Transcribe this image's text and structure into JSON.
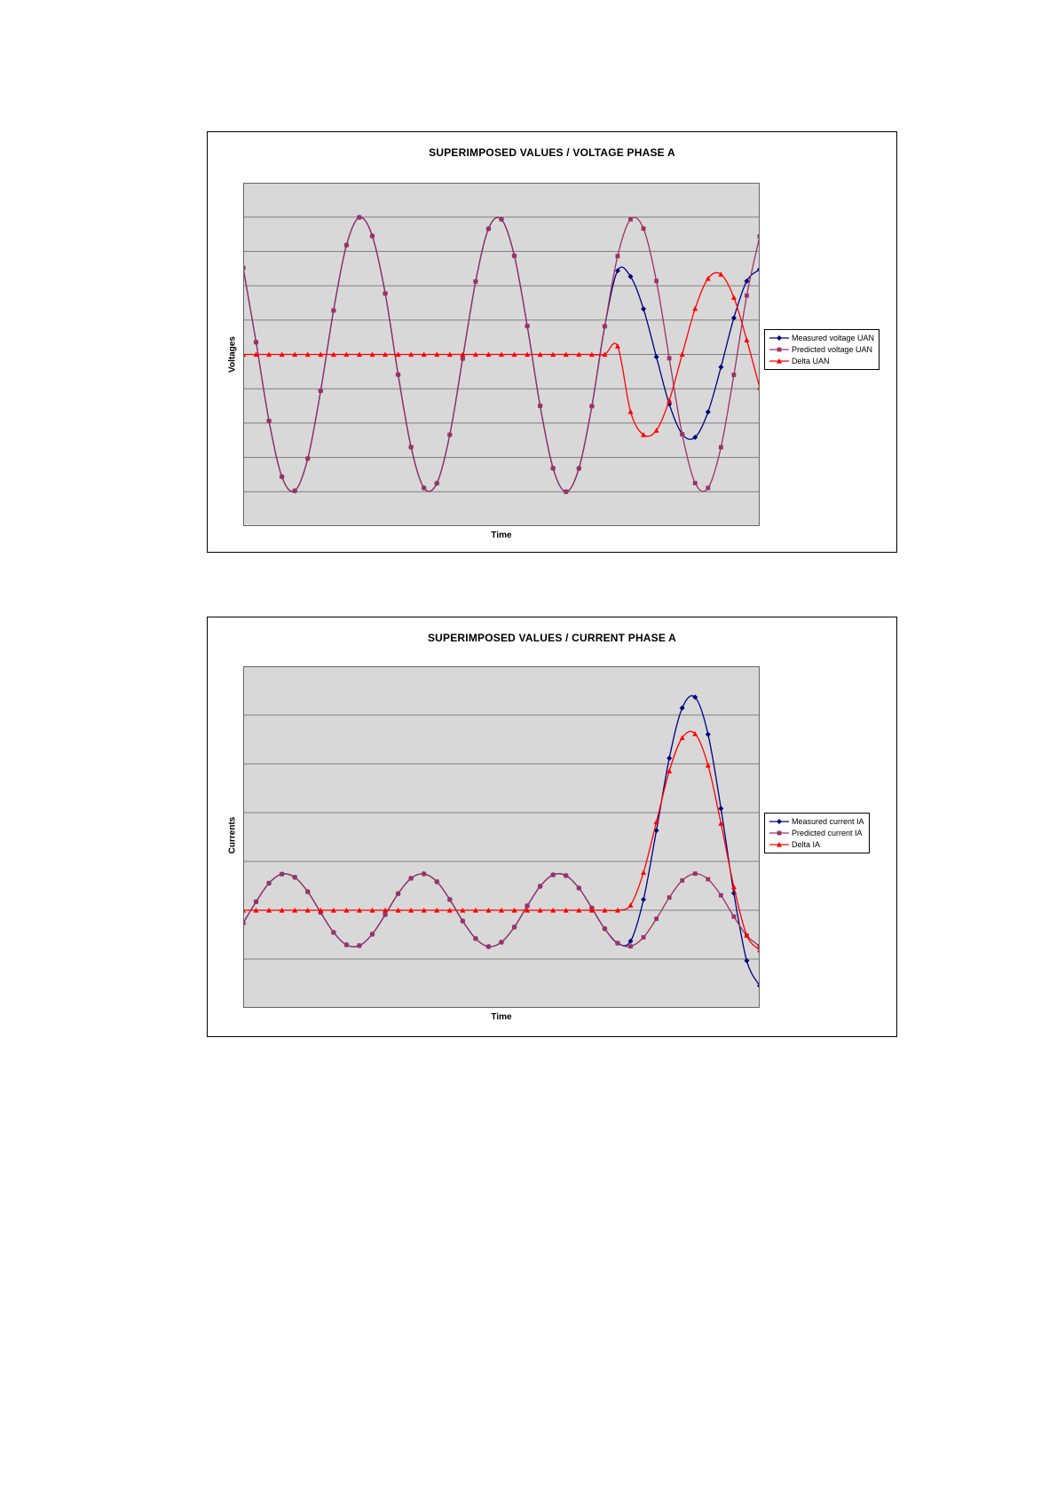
{
  "page": {
    "background": "#ffffff"
  },
  "chart_data": [
    {
      "type": "line",
      "title": "SUPERIMPOSED VALUES / VOLTAGE PHASE A",
      "xlabel": "Time",
      "ylabel": "Voltages",
      "ylim": [
        -125,
        125
      ],
      "grid_step": 25,
      "grid_on": true,
      "legend_position": "right",
      "plot_bg": "#d8d8d8",
      "grid_color": "#7f7f7f",
      "x": [
        0,
        2,
        4,
        6,
        8,
        10,
        12,
        14,
        16,
        18,
        20,
        22,
        24,
        26,
        28,
        30,
        32,
        34,
        36,
        38,
        40,
        42,
        44,
        46,
        48,
        50,
        52,
        54,
        56,
        58,
        60,
        62,
        64,
        66,
        68,
        70,
        72,
        74,
        76,
        78,
        80
      ],
      "series": [
        {
          "name": "Measured voltage UAN",
          "color": "#000080",
          "marker": "diamond",
          "values": [
            63.0,
            8.9,
            -48.4,
            -89.0,
            -99.3,
            -75.8,
            -26.5,
            32.0,
            79.6,
            99.8,
            86.2,
            44.4,
            -14.7,
            -67.5,
            -97.2,
            -93.8,
            -58.5,
            -3.0,
            53.1,
            91.5,
            98.4,
            71.8,
            20.7,
            -37.5,
            -82.9,
            -100.0,
            -83.0,
            -37.7,
            20.5,
            61.0,
            56.7,
            33.1,
            -1.8,
            -36.2,
            -58.1,
            -60.3,
            -41.9,
            -9.2,
            26.6,
            53.4,
            61.9
          ]
        },
        {
          "name": "Predicted voltage UAN",
          "color": "#993366",
          "marker": "square",
          "values": [
            63.0,
            8.9,
            -48.4,
            -89.0,
            -99.3,
            -75.8,
            -26.5,
            32.0,
            79.6,
            99.8,
            86.2,
            44.4,
            -14.7,
            -67.5,
            -97.2,
            -93.8,
            -58.5,
            -3.0,
            53.1,
            91.5,
            98.4,
            71.8,
            20.7,
            -37.5,
            -82.9,
            -100.0,
            -83.0,
            -37.7,
            20.5,
            71.6,
            98.4,
            91.6,
            53.5,
            -2.8,
            -58.2,
            -93.7,
            -97.2,
            -67.6,
            -14.9,
            42.9,
            86.0
          ]
        },
        {
          "name": "Delta UAN",
          "color": "#ff0000",
          "marker": "triangle",
          "values": [
            0,
            0,
            0,
            0,
            0,
            0,
            0,
            0,
            0,
            0,
            0,
            0,
            0,
            0,
            0,
            0,
            0,
            0,
            0,
            0,
            0,
            0,
            0,
            0,
            0,
            0,
            0,
            0,
            0,
            6.0,
            -41.7,
            -58.5,
            -55.3,
            -33.4,
            0.1,
            33.4,
            55.3,
            58.4,
            41.5,
            10.5,
            -24.1
          ]
        }
      ]
    },
    {
      "type": "line",
      "title": "SUPERIMPOSED VALUES / CURRENT PHASE A",
      "xlabel": "Time",
      "ylabel": "Currents",
      "ylim": [
        -40,
        100
      ],
      "grid_step": 20,
      "grid_on": true,
      "legend_position": "right",
      "plot_bg": "#d8d8d8",
      "grid_color": "#7f7f7f",
      "x": [
        0,
        2,
        4,
        6,
        8,
        10,
        12,
        14,
        16,
        18,
        20,
        22,
        24,
        26,
        28,
        30,
        32,
        34,
        36,
        38,
        40,
        42,
        44,
        46,
        48,
        50,
        52,
        54,
        56,
        58,
        60,
        62,
        64,
        66,
        68,
        70,
        72,
        74,
        76,
        78,
        80
      ],
      "series": [
        {
          "name": "Measured current IA",
          "color": "#000080",
          "marker": "diamond",
          "values": [
            -5.3,
            3.5,
            11.1,
            14.8,
            13.5,
            7.6,
            -0.9,
            -9.1,
            -14.2,
            -14.5,
            -9.8,
            -1.8,
            6.8,
            13.1,
            14.9,
            11.7,
            4.4,
            -4.4,
            -11.6,
            -14.9,
            -13.1,
            -6.9,
            1.8,
            9.8,
            14.5,
            14.2,
            9.1,
            0.9,
            -7.6,
            -13.5,
            -12.7,
            4.4,
            32.7,
            62.3,
            82.9,
            87.3,
            72.1,
            41.7,
            7.0,
            -20.7,
            -31.0
          ]
        },
        {
          "name": "Predicted current IA",
          "color": "#993366",
          "marker": "square",
          "values": [
            -5.3,
            3.5,
            11.1,
            14.8,
            13.5,
            7.6,
            -0.9,
            -9.1,
            -14.2,
            -14.5,
            -9.8,
            -1.8,
            6.8,
            13.1,
            14.9,
            11.7,
            4.4,
            -4.4,
            -11.6,
            -14.9,
            -13.1,
            -6.9,
            1.8,
            9.8,
            14.5,
            14.2,
            9.1,
            0.9,
            -7.6,
            -13.5,
            -14.8,
            -11.1,
            -3.5,
            5.2,
            12.2,
            15.0,
            12.7,
            6.1,
            -2.6,
            -10.4,
            -14.7
          ]
        },
        {
          "name": "Delta IA",
          "color": "#ff0000",
          "marker": "triangle",
          "values": [
            0,
            0,
            0,
            0,
            0,
            0,
            0,
            0,
            0,
            0,
            0,
            0,
            0,
            0,
            0,
            0,
            0,
            0,
            0,
            0,
            0,
            0,
            0,
            0,
            0,
            0,
            0,
            0,
            0,
            0,
            2.1,
            15.5,
            36.2,
            57.1,
            70.7,
            72.3,
            59.4,
            35.6,
            9.6,
            -10.3,
            -16.3
          ]
        }
      ]
    }
  ]
}
